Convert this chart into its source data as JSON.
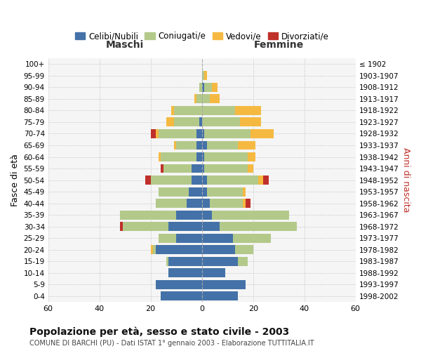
{
  "age_groups": [
    "0-4",
    "5-9",
    "10-14",
    "15-19",
    "20-24",
    "25-29",
    "30-34",
    "35-39",
    "40-44",
    "45-49",
    "50-54",
    "55-59",
    "60-64",
    "65-69",
    "70-74",
    "75-79",
    "80-84",
    "85-89",
    "90-94",
    "95-99",
    "100+"
  ],
  "birth_years": [
    "1998-2002",
    "1993-1997",
    "1988-1992",
    "1983-1987",
    "1978-1982",
    "1973-1977",
    "1968-1972",
    "1963-1967",
    "1958-1962",
    "1953-1957",
    "1948-1952",
    "1943-1947",
    "1938-1942",
    "1933-1937",
    "1928-1932",
    "1923-1927",
    "1918-1922",
    "1913-1917",
    "1908-1912",
    "1903-1907",
    "≤ 1902"
  ],
  "colors": {
    "celibi": "#4472a8",
    "coniugati": "#b3c98a",
    "vedovi": "#f5b942",
    "divorziati": "#c0302a"
  },
  "males": {
    "celibi": [
      16,
      18,
      13,
      13,
      18,
      10,
      13,
      10,
      6,
      5,
      4,
      4,
      2,
      2,
      2,
      1,
      0,
      0,
      0,
      0,
      0
    ],
    "coniugati": [
      0,
      0,
      0,
      1,
      1,
      7,
      18,
      22,
      12,
      12,
      16,
      11,
      14,
      8,
      15,
      10,
      11,
      2,
      1,
      0,
      0
    ],
    "vedovi": [
      0,
      0,
      0,
      0,
      1,
      0,
      0,
      0,
      0,
      0,
      0,
      0,
      1,
      1,
      1,
      3,
      1,
      1,
      0,
      0,
      0
    ],
    "divorziati": [
      0,
      0,
      0,
      0,
      0,
      0,
      1,
      0,
      0,
      0,
      2,
      1,
      0,
      0,
      2,
      0,
      0,
      0,
      0,
      0,
      0
    ]
  },
  "females": {
    "celibi": [
      14,
      17,
      9,
      14,
      13,
      12,
      7,
      4,
      3,
      2,
      2,
      1,
      1,
      2,
      1,
      0,
      0,
      0,
      1,
      0,
      0
    ],
    "coniugati": [
      0,
      0,
      0,
      4,
      7,
      15,
      30,
      30,
      13,
      14,
      20,
      17,
      17,
      12,
      18,
      15,
      13,
      3,
      3,
      1,
      0
    ],
    "vedovi": [
      0,
      0,
      0,
      0,
      0,
      0,
      0,
      0,
      1,
      1,
      2,
      2,
      3,
      7,
      9,
      8,
      10,
      4,
      2,
      1,
      0
    ],
    "divorziati": [
      0,
      0,
      0,
      0,
      0,
      0,
      0,
      0,
      2,
      0,
      2,
      0,
      0,
      0,
      0,
      0,
      0,
      0,
      0,
      0,
      0
    ]
  },
  "xlim": 60,
  "title": "Popolazione per età, sesso e stato civile - 2003",
  "subtitle": "COMUNE DI BARCHI (PU) - Dati ISTAT 1° gennaio 2003 - Elaborazione TUTTITALIA.IT",
  "xlabel_left": "Maschi",
  "xlabel_right": "Femmine",
  "ylabel_left": "Fasce di età",
  "ylabel_right": "Anni di nascita",
  "legend_labels": [
    "Celibi/Nubili",
    "Coniugati/e",
    "Vedovi/e",
    "Divorziati/e"
  ]
}
